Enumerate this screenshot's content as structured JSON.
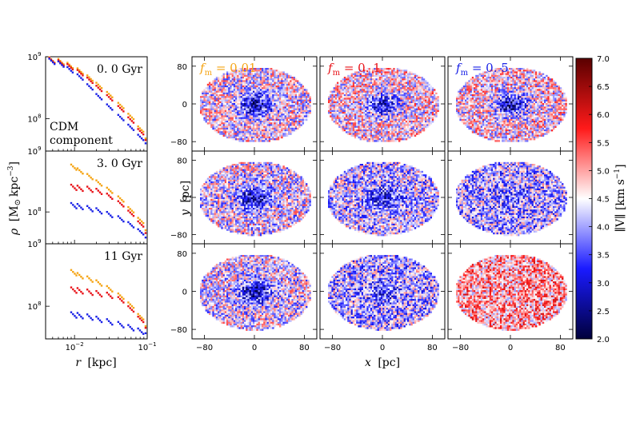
{
  "chart_data": [
    {
      "type": "scatter",
      "panel": "density-profiles",
      "xscale": "log",
      "yscale": "log",
      "xlim": [
        0.004,
        0.1
      ],
      "ylim": [
        30000000,
        1000000000
      ],
      "xlabel_symbol": "r",
      "xlabel_unit": "[kpc]",
      "ylabel_symbol": "ρ",
      "ylabel_unit": "[M",
      "ylabel_unit2": "kpc",
      "ylabel_exp": "−3",
      "ylabel_close": "]",
      "xticks": [
        {
          "v": 0.01,
          "base": "10",
          "exp": "−2"
        },
        {
          "v": 0.1,
          "base": "10",
          "exp": "−1"
        }
      ],
      "yticks": [
        {
          "v": 1000000000,
          "base": "10",
          "exp": "9"
        },
        {
          "v": 100000000,
          "base": "10",
          "exp": "8"
        }
      ],
      "annotation": [
        "CDM",
        "component"
      ],
      "series_colors": [
        "#f5a516",
        "#e8141a",
        "#1a22e6"
      ],
      "rows": [
        {
          "label": "0. 0 Gyr",
          "x": [
            0.0045,
            0.006,
            0.008,
            0.011,
            0.015,
            0.02,
            0.028,
            0.04,
            0.055,
            0.075,
            0.095
          ],
          "series": [
            {
              "y": [
                980000000,
                920000000,
                800000000,
                650000000,
                500000000,
                380000000,
                270000000,
                180000000,
                120000000,
                75000000,
                48000000
              ]
            },
            {
              "y": [
                960000000,
                880000000,
                760000000,
                610000000,
                460000000,
                340000000,
                240000000,
                160000000,
                105000000,
                68000000,
                45000000
              ]
            },
            {
              "y": [
                930000000,
                840000000,
                680000000,
                520000000,
                360000000,
                250000000,
                170000000,
                115000000,
                80000000,
                55000000,
                40000000
              ]
            }
          ]
        },
        {
          "label": "3. 0 Gyr",
          "x": [
            0.009,
            0.011,
            0.015,
            0.02,
            0.028,
            0.04,
            0.055,
            0.075,
            0.095
          ],
          "series": [
            {
              "y": [
                600000000,
                520000000,
                420000000,
                330000000,
                250000000,
                180000000,
                120000000,
                80000000,
                50000000
              ]
            },
            {
              "y": [
                280000000,
                270000000,
                260000000,
                240000000,
                200000000,
                150000000,
                105000000,
                70000000,
                45000000
              ]
            },
            {
              "y": [
                140000000,
                135000000,
                125000000,
                115000000,
                100000000,
                85000000,
                68000000,
                52000000,
                38000000
              ]
            }
          ]
        },
        {
          "label": "11 Gyr",
          "x": [
            0.009,
            0.011,
            0.015,
            0.02,
            0.028,
            0.04,
            0.055,
            0.075,
            0.095
          ],
          "series": [
            {
              "y": [
                380000000,
                340000000,
                300000000,
                260000000,
                210000000,
                160000000,
                115000000,
                75000000,
                48000000
              ]
            },
            {
              "y": [
                200000000,
                195000000,
                185000000,
                175000000,
                165000000,
                140000000,
                100000000,
                68000000,
                45000000
              ]
            },
            {
              "y": [
                80000000,
                78000000,
                74000000,
                68000000,
                62000000,
                56000000,
                50000000,
                44000000,
                37000000
              ]
            }
          ]
        }
      ]
    },
    {
      "type": "heatmap",
      "panel": "velocity-maps",
      "columns": [
        {
          "prefix": "f",
          "sub": "m",
          "rest": " = 0.01",
          "color": "#f5a516"
        },
        {
          "prefix": "f",
          "sub": "m",
          "rest": " = 0. 1",
          "color": "#e8141a"
        },
        {
          "prefix": "f",
          "sub": "m",
          "rest": " = 0. 5",
          "color": "#1a22e6"
        }
      ],
      "xlim": [
        -100,
        100
      ],
      "ylim": [
        -100,
        100
      ],
      "xticks": [
        -80,
        0,
        80
      ],
      "yticks": [
        80,
        0,
        -80
      ],
      "xlabel_symbol": "x",
      "xlabel_unit": "[pc]",
      "ylabel_symbol": "y",
      "ylabel_unit": "[pc]",
      "disk_radius_x": 90,
      "disk_radius_y": 80,
      "core_strength": [
        [
          0.9,
          0.8,
          0.9
        ],
        [
          0.85,
          0.55,
          0.2
        ],
        [
          0.85,
          0.3,
          0.0
        ]
      ],
      "mean_level": [
        [
          4.5,
          4.6,
          4.6
        ],
        [
          4.4,
          4.2,
          4.1
        ],
        [
          4.4,
          4.1,
          5.0
        ]
      ],
      "colorbar": {
        "vmin": 2.0,
        "vmax": 7.0,
        "ticks": [
          "7.0",
          "6.5",
          "6.0",
          "5.5",
          "5.0",
          "4.5",
          "4.0",
          "3.5",
          "3.0",
          "2.5",
          "2.0"
        ],
        "label": "∥V∥ [km s",
        "label_exp": "−1",
        "label_close": "]",
        "colormap": [
          "#00003b",
          "#1a1aff",
          "#ffffff",
          "#ff1a1a",
          "#5a0000"
        ]
      }
    }
  ]
}
